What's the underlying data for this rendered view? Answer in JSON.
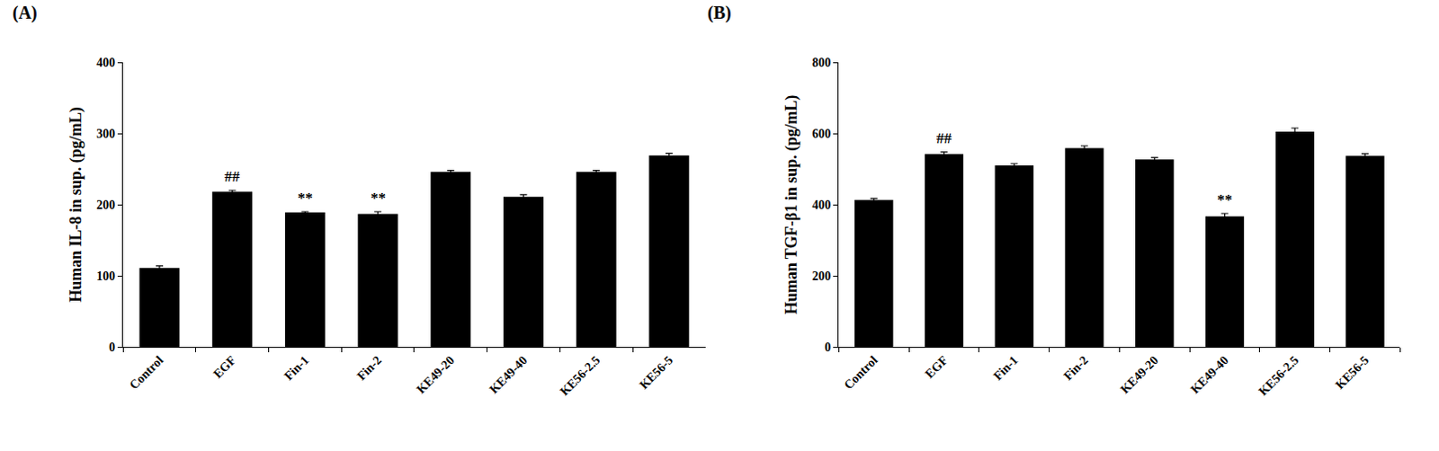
{
  "chart_data": [
    {
      "type": "bar",
      "title": "(A)",
      "y_label": "Human IL-8 in sup. (pg/mL)",
      "categories": [
        "Control",
        "EGF",
        "Fin-1",
        "Fin-2",
        "KE49-20",
        "KE49-40",
        "KE56-2.5",
        "KE56-5"
      ],
      "values": [
        111,
        218,
        189,
        187,
        246,
        211,
        246,
        269
      ],
      "errors": [
        3,
        2,
        1,
        3,
        2,
        3,
        2,
        3
      ],
      "color": "#000000",
      "ylim": [
        0,
        400
      ],
      "yticks": [
        0,
        100,
        200,
        300,
        400
      ],
      "grid": false,
      "annotations": [
        {
          "category": "EGF",
          "text": "##"
        },
        {
          "category": "Fin-1",
          "text": "**"
        },
        {
          "category": "Fin-2",
          "text": "**"
        }
      ]
    },
    {
      "type": "bar",
      "title": "(B)",
      "y_label": "Human TGF-β1 in sup. (pg/mL)",
      "categories": [
        "Control",
        "EGF",
        "Fin-1",
        "Fin-2",
        "KE49-20",
        "KE49-40",
        "KE56-2.5",
        "KE56-5"
      ],
      "values": [
        413,
        542,
        510,
        559,
        527,
        367,
        605,
        537
      ],
      "errors": [
        4,
        6,
        5,
        6,
        5,
        8,
        10,
        6
      ],
      "color": "#000000",
      "ylim": [
        0,
        800
      ],
      "yticks": [
        0,
        200,
        400,
        600,
        800
      ],
      "grid": false,
      "annotations": [
        {
          "category": "EGF",
          "text": "##"
        },
        {
          "category": "KE49-40",
          "text": "**"
        }
      ]
    }
  ]
}
